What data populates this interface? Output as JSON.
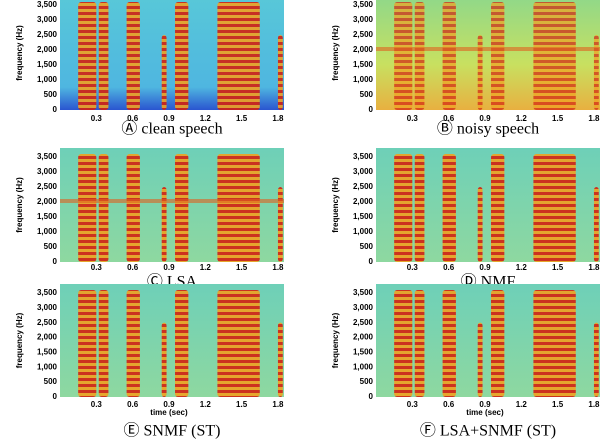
{
  "y_ticks": [
    "0",
    "500",
    "1,000",
    "1,500",
    "2,000",
    "2,500",
    "3,000",
    "3,500"
  ],
  "x_ticks": [
    "0.3",
    "0.6",
    "0.9",
    "1.2",
    "1.5",
    "1.8"
  ],
  "y_label": "frequency (Hz)",
  "panels": [
    {
      "caption": "Ⓐ clean speech"
    },
    {
      "caption": "Ⓑ noisy speech"
    },
    {
      "caption": "Ⓒ LSA"
    },
    {
      "caption": "Ⓓ NMF"
    },
    {
      "caption": "Ⓔ SNMF (ST)",
      "x_label": "time (sec)"
    },
    {
      "caption": "Ⓕ LSA+SNMF (ST)",
      "x_label": "time (sec)"
    }
  ]
}
